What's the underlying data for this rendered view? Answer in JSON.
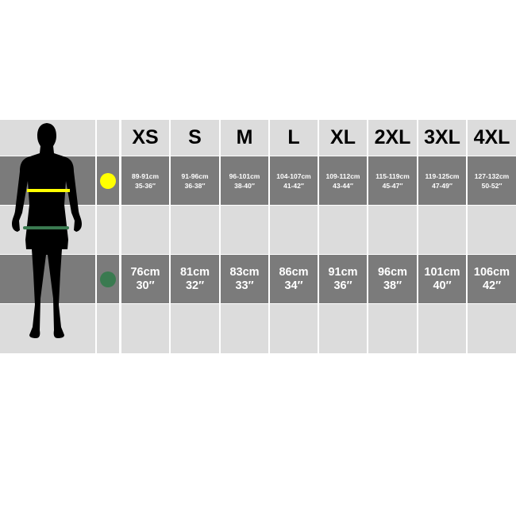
{
  "sizes": [
    "XS",
    "S",
    "M",
    "L",
    "XL",
    "2XL",
    "3XL",
    "4XL"
  ],
  "chest": {
    "marker_color": "#ffff00",
    "cm": [
      "89-91cm",
      "91-96cm",
      "96-101cm",
      "104-107cm",
      "109-112cm",
      "115-119cm",
      "119-125cm",
      "127-132cm"
    ],
    "inch": [
      "35-36″",
      "36-38″",
      "38-40″",
      "41-42″",
      "43-44″",
      "45-47″",
      "47-49″",
      "50-52″"
    ]
  },
  "waist": {
    "marker_color": "#3a7a50",
    "cm": [
      "76cm",
      "81cm",
      "83cm",
      "86cm",
      "91cm",
      "96cm",
      "101cm",
      "106cm"
    ],
    "inch": [
      "30″",
      "32″",
      "33″",
      "34″",
      "36″",
      "38″",
      "40″",
      "42″"
    ]
  },
  "colors": {
    "light_cell": "#dcdcdc",
    "dark_cell": "#7b7b7b",
    "silhouette": "#000000"
  }
}
